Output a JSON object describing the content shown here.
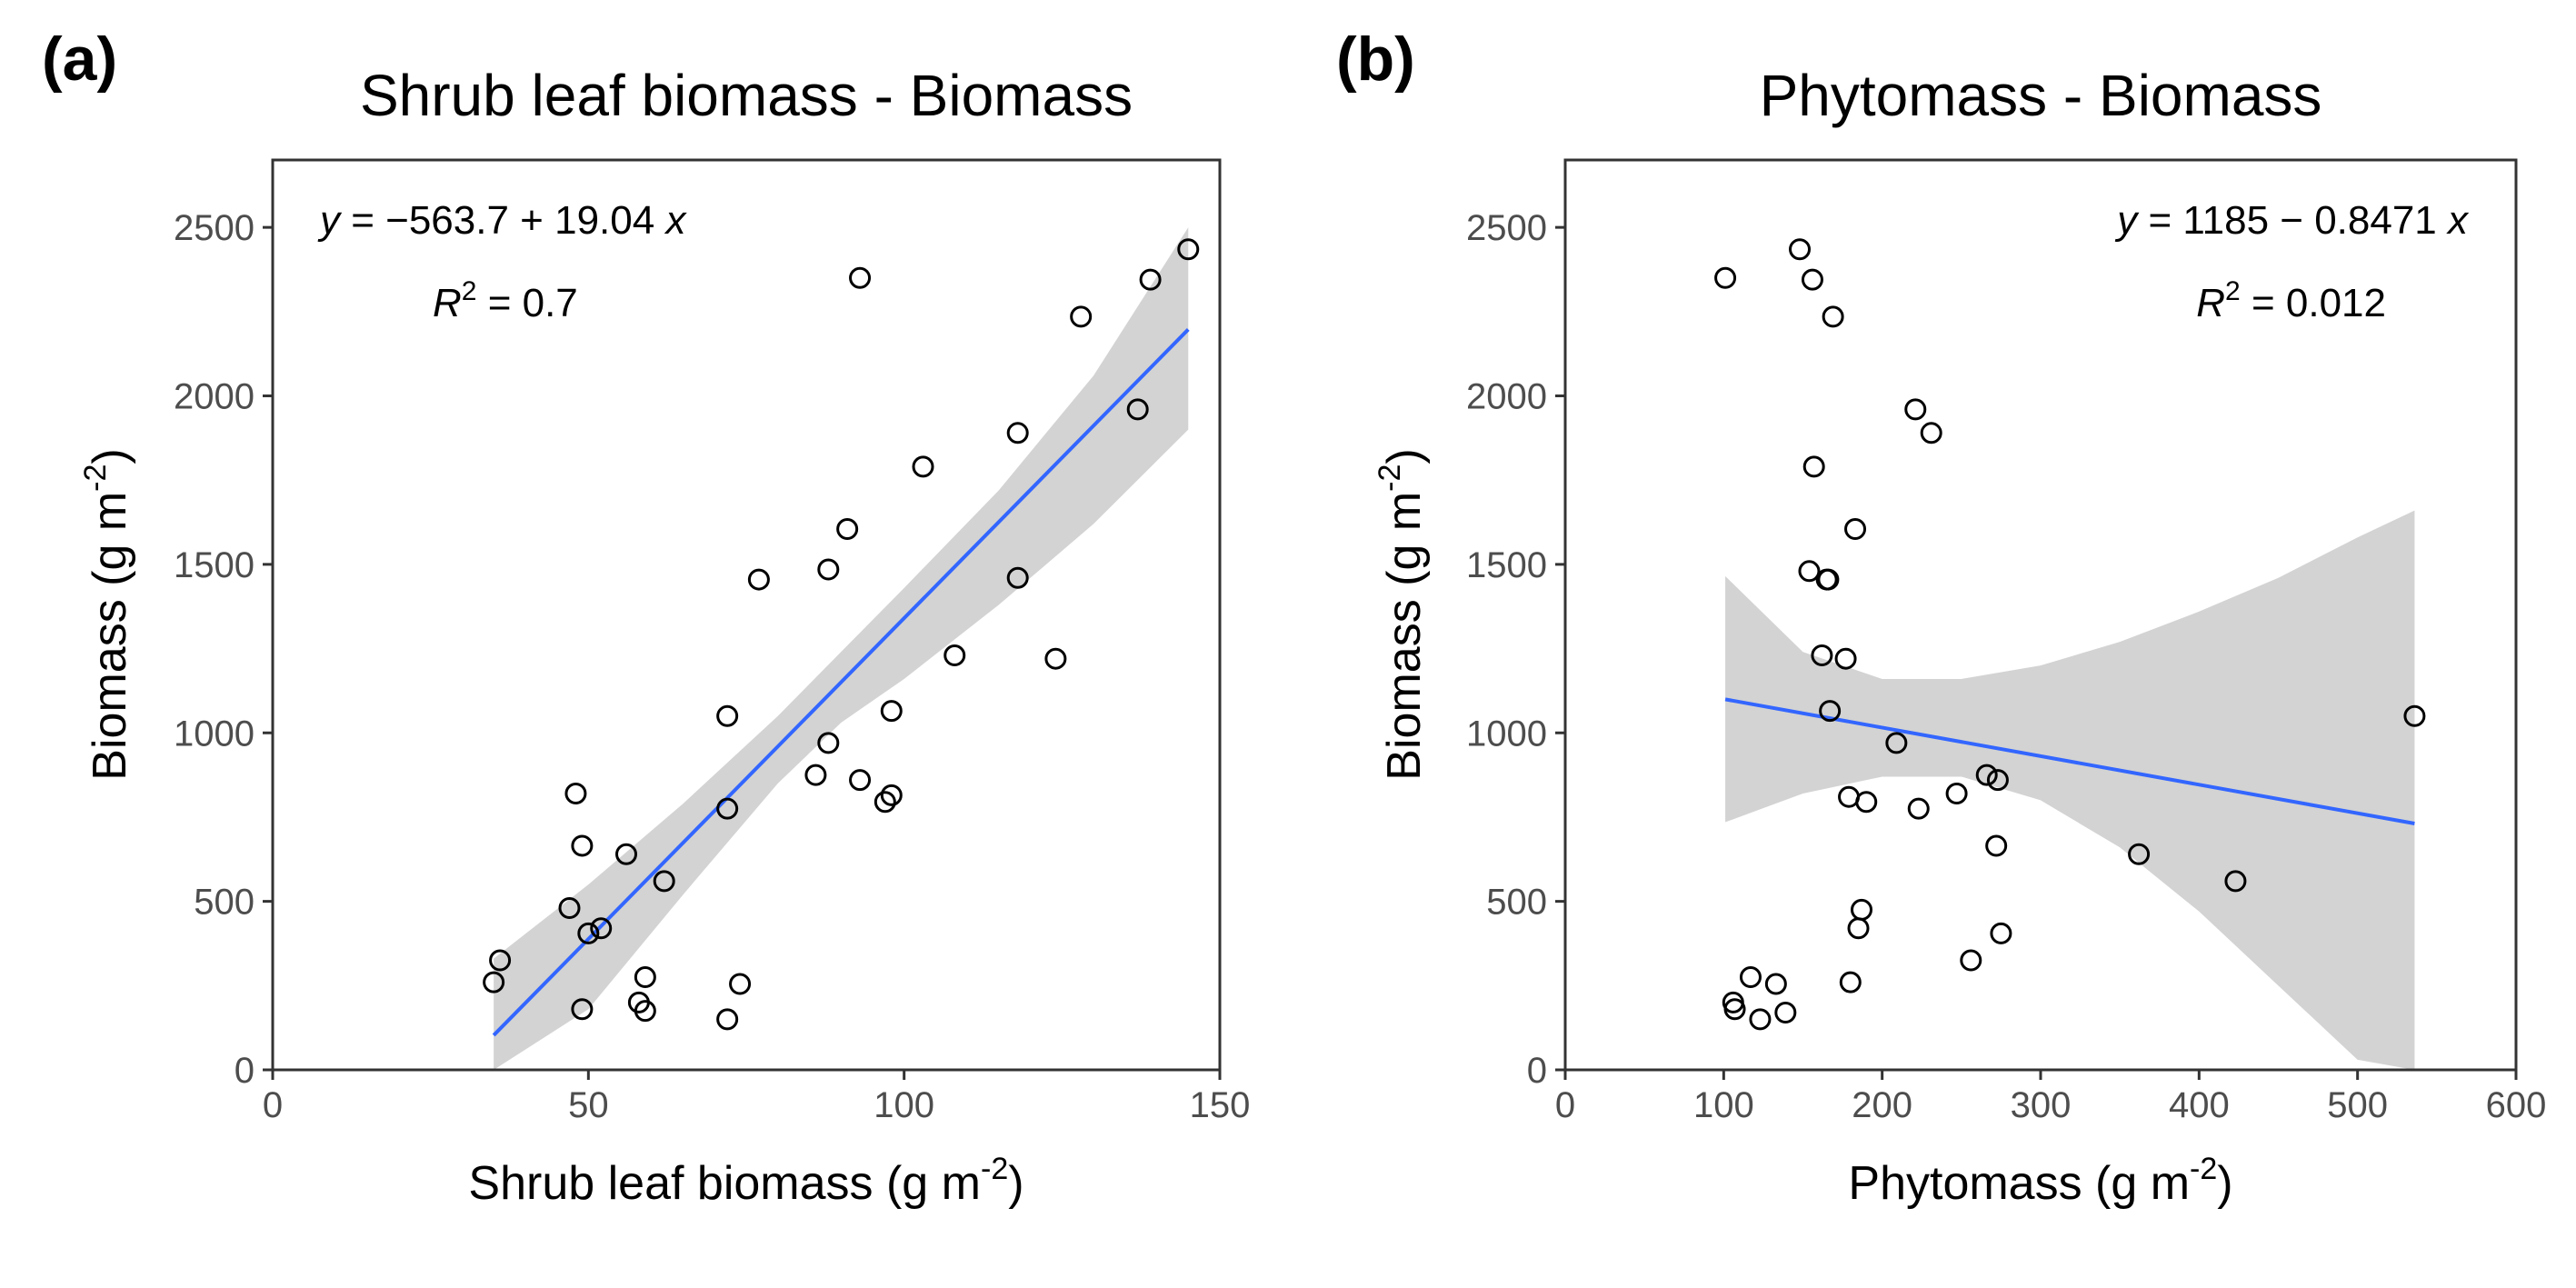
{
  "chart_data": [
    {
      "type": "scatter",
      "panel_tag": "(a)",
      "title": "Shrub leaf biomass - Biomass",
      "xlabel_main": "Shrub leaf biomass (g m",
      "xlabel_sup": "-2",
      "xlabel_end": ")",
      "ylabel_main": "Biomass (g m",
      "ylabel_sup": "-2",
      "ylabel_end": ")",
      "xlim": [
        0,
        150
      ],
      "ylim": [
        0,
        2700
      ],
      "xticks": [
        0,
        50,
        100,
        150
      ],
      "yticks": [
        0,
        500,
        1000,
        1500,
        2000,
        2500
      ],
      "equation": {
        "y": "y",
        "eq": " = −563.7 + 19.04 ",
        "x": "x",
        "r": "R",
        "r_sup": "2",
        "r_val": " = 0.7",
        "align": "left"
      },
      "fit": {
        "intercept": -563.7,
        "slope": 19.04,
        "xmin": 35,
        "xmax": 145
      },
      "band": {
        "x": [
          35,
          50,
          65,
          80,
          90,
          100,
          115,
          130,
          145
        ],
        "upper": [
          330,
          550,
          790,
          1050,
          1240,
          1430,
          1720,
          2060,
          2500
        ],
        "lower": [
          -120,
          180,
          520,
          850,
          1030,
          1160,
          1380,
          1620,
          1900
        ]
      },
      "points": [
        [
          35,
          260
        ],
        [
          36,
          325
        ],
        [
          47,
          480
        ],
        [
          48,
          820
        ],
        [
          49,
          665
        ],
        [
          49,
          180
        ],
        [
          50,
          405
        ],
        [
          52,
          420
        ],
        [
          56,
          640
        ],
        [
          58,
          200
        ],
        [
          59,
          275
        ],
        [
          59,
          175
        ],
        [
          62,
          560
        ],
        [
          72,
          150
        ],
        [
          72,
          1050
        ],
        [
          72,
          775
        ],
        [
          74,
          255
        ],
        [
          77,
          1455
        ],
        [
          86,
          875
        ],
        [
          88,
          1485
        ],
        [
          88,
          970
        ],
        [
          91,
          1605
        ],
        [
          93,
          2350
        ],
        [
          93,
          860
        ],
        [
          97,
          795
        ],
        [
          98,
          1065
        ],
        [
          98,
          815
        ],
        [
          103,
          1790
        ],
        [
          108,
          1230
        ],
        [
          118,
          1890
        ],
        [
          118,
          1460
        ],
        [
          124,
          1220
        ],
        [
          128,
          2235
        ],
        [
          137,
          1960
        ],
        [
          139,
          2345
        ],
        [
          145,
          2435
        ]
      ],
      "colors": {
        "fit": "#3366ff",
        "band": "#d3d3d3",
        "points": "#000000"
      }
    },
    {
      "type": "scatter",
      "panel_tag": "(b)",
      "title": "Phytomass - Biomass",
      "xlabel_main": "Phytomass (g m",
      "xlabel_sup": "-2",
      "xlabel_end": ")",
      "ylabel_main": "Biomass (g m",
      "ylabel_sup": "-2",
      "ylabel_end": ")",
      "xlim": [
        0,
        600
      ],
      "ylim": [
        0,
        2700
      ],
      "xticks": [
        0,
        100,
        200,
        300,
        400,
        500,
        600
      ],
      "yticks": [
        0,
        500,
        1000,
        1500,
        2000,
        2500
      ],
      "equation": {
        "y": "y",
        "eq": " = 1185 − 0.8471 ",
        "x": "x",
        "r": "R",
        "r_sup": "2",
        "r_val": " = 0.012",
        "align": "right"
      },
      "fit": {
        "intercept": 1185,
        "slope": -0.8471,
        "xmin": 101,
        "xmax": 536
      },
      "band": {
        "x": [
          101,
          150,
          200,
          250,
          300,
          350,
          400,
          450,
          500,
          536
        ],
        "upper": [
          1465,
          1240,
          1160,
          1160,
          1200,
          1270,
          1360,
          1460,
          1580,
          1660
        ],
        "lower": [
          735,
          820,
          870,
          870,
          800,
          660,
          470,
          250,
          30,
          -110
        ]
      },
      "points": [
        [
          101,
          2350
        ],
        [
          106,
          200
        ],
        [
          107,
          180
        ],
        [
          117,
          275
        ],
        [
          123,
          150
        ],
        [
          133,
          255
        ],
        [
          139,
          170
        ],
        [
          148,
          2435
        ],
        [
          154,
          1480
        ],
        [
          156,
          2345
        ],
        [
          157,
          1790
        ],
        [
          162,
          1230
        ],
        [
          165,
          1455
        ],
        [
          166,
          1455
        ],
        [
          167,
          1065
        ],
        [
          169,
          2235
        ],
        [
          177,
          1220
        ],
        [
          179,
          810
        ],
        [
          180,
          260
        ],
        [
          183,
          1605
        ],
        [
          185,
          420
        ],
        [
          187,
          475
        ],
        [
          190,
          795
        ],
        [
          209,
          970
        ],
        [
          221,
          1960
        ],
        [
          223,
          775
        ],
        [
          231,
          1890
        ],
        [
          247,
          820
        ],
        [
          256,
          325
        ],
        [
          266,
          875
        ],
        [
          272,
          665
        ],
        [
          273,
          860
        ],
        [
          275,
          405
        ],
        [
          362,
          640
        ],
        [
          423,
          560
        ],
        [
          536,
          1050
        ]
      ],
      "colors": {
        "fit": "#3366ff",
        "band": "#d3d3d3",
        "points": "#000000"
      }
    }
  ]
}
